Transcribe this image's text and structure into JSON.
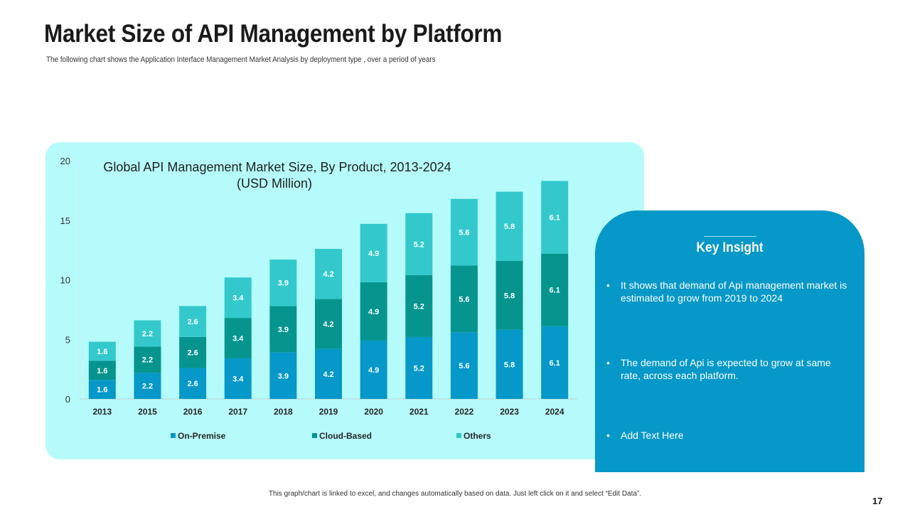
{
  "slide": {
    "title": "Market Size of API Management by Platform",
    "subtitle": "The following chart shows the Application  Interface Management Market Analysis  by deployment type , over a period of years",
    "footnote": "This graph/chart is linked to excel, and changes automatically  based on data. Just left click on it and select “Edit Data”.",
    "page_number": "17"
  },
  "insight": {
    "heading": "Key Insight",
    "items": [
      "It shows that demand of Api management market is estimated to grow from 2019 to 2024",
      "The demand of Api is expected to grow at same rate, across each platform.",
      "Add Text Here"
    ],
    "bullet": "•"
  },
  "colors": {
    "on_premise": "#0598c8",
    "cloud_based": "#06948e",
    "others": "#33c9cc",
    "panel": "#b6fbfb",
    "card": "#0598c8"
  },
  "chart_data": {
    "type": "bar",
    "stacked": true,
    "title": "Global API Management Market Size, By Product, 2013-2024",
    "title_line2": "(USD Million)",
    "categories": [
      "2013",
      "2015",
      "2016",
      "2017",
      "2018",
      "2019",
      "2020",
      "2021",
      "2022",
      "2023",
      "2024"
    ],
    "series": [
      {
        "name": "On-Premise",
        "color": "#0598c8",
        "values": [
          1.6,
          2.2,
          2.6,
          3.4,
          3.9,
          4.2,
          4.9,
          5.2,
          5.6,
          5.8,
          6.1
        ]
      },
      {
        "name": "Cloud-Based",
        "color": "#06948e",
        "values": [
          1.6,
          2.2,
          2.6,
          3.4,
          3.9,
          4.2,
          4.9,
          5.2,
          5.6,
          5.8,
          6.1
        ]
      },
      {
        "name": "Others",
        "color": "#33c9cc",
        "values": [
          1.6,
          2.2,
          2.6,
          3.4,
          3.9,
          4.2,
          4.9,
          5.2,
          5.6,
          5.8,
          6.1
        ]
      }
    ],
    "ylim": [
      0,
      20
    ],
    "yticks": [
      0,
      5,
      10,
      15,
      20
    ],
    "xlabel": "",
    "ylabel": "",
    "grid": false,
    "legend": "bottom"
  }
}
